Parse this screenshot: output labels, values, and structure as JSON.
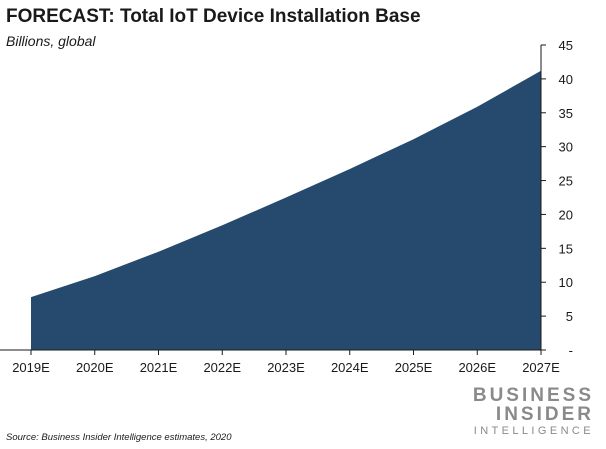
{
  "header": {
    "title": "FORECAST: Total IoT Device Installation Base",
    "subtitle": "Billions, global"
  },
  "footer": {
    "source": "Source: Business Insider Intelligence estimates, 2020",
    "logo_line1": "BUSINESS",
    "logo_line2": "INSIDER",
    "logo_line3": "INTELLIGENCE"
  },
  "colors": {
    "area_fill": "#264a6e",
    "axis": "#1a1a1a",
    "logo": "#8a8a8a"
  },
  "chart_data": {
    "type": "area",
    "title": "FORECAST: Total IoT Device Installation Base",
    "subtitle": "Billions, global",
    "categories": [
      "2019E",
      "2020E",
      "2021E",
      "2022E",
      "2023E",
      "2024E",
      "2025E",
      "2026E",
      "2027E"
    ],
    "series": [
      {
        "values": [
          7.8,
          10.9,
          14.5,
          18.4,
          22.5,
          26.7,
          31.1,
          35.9,
          41.2
        ]
      }
    ],
    "y_ticks": [
      "-",
      "5",
      "10",
      "15",
      "20",
      "25",
      "30",
      "35",
      "40",
      "45"
    ],
    "y_tick_values": [
      0,
      5,
      10,
      15,
      20,
      25,
      30,
      35,
      40,
      45
    ],
    "ylim": [
      0,
      45
    ],
    "y_axis_side": "right",
    "grid": false,
    "legend": "none"
  }
}
